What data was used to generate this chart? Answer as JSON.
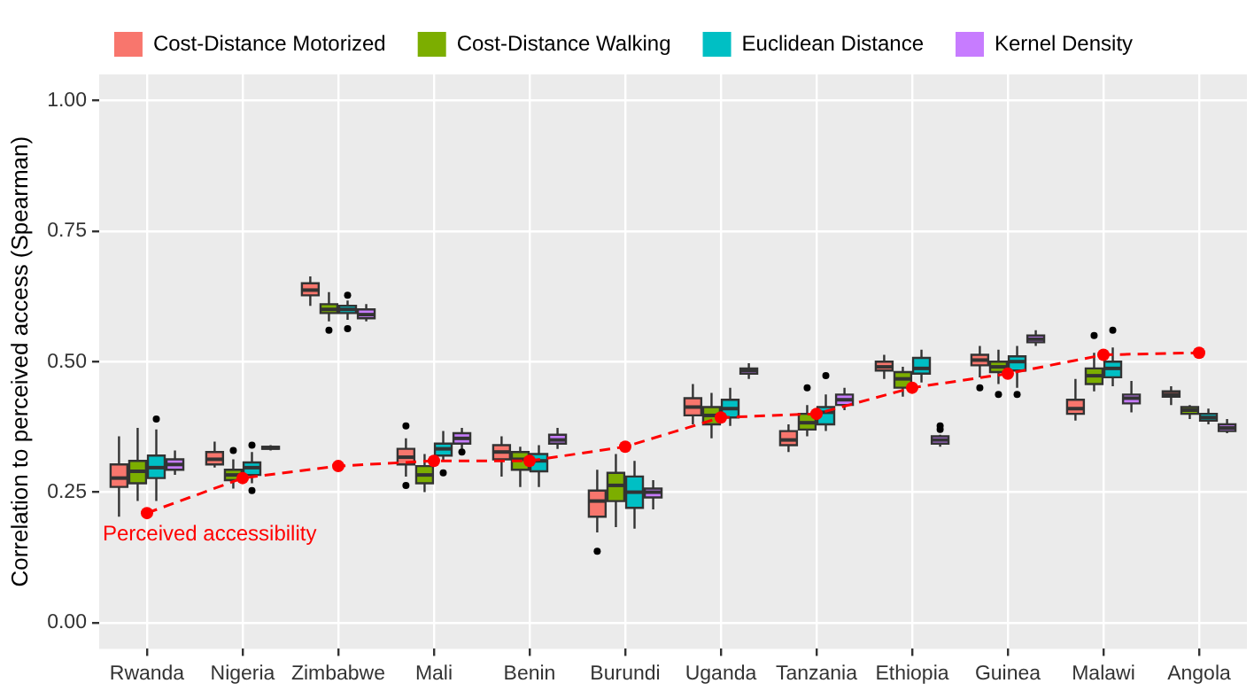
{
  "chart_data": {
    "type": "box",
    "ylabel": "Correlation to perceived access (Spearman)",
    "categories": [
      "Rwanda",
      "Nigeria",
      "Zimbabwe",
      "Mali",
      "Benin",
      "Burundi",
      "Uganda",
      "Tanzania",
      "Ethiopia",
      "Guinea",
      "Malawi",
      "Angola"
    ],
    "ylim": [
      -0.05,
      1.05
    ],
    "yticks": [
      {
        "value": 0,
        "label": "0.00"
      },
      {
        "value": 0.25,
        "label": "0.25"
      },
      {
        "value": 0.5,
        "label": "0.50"
      },
      {
        "value": 0.75,
        "label": "0.75"
      },
      {
        "value": 1,
        "label": "1.00"
      }
    ],
    "grid": true,
    "legend": "top",
    "marker": "circle",
    "line_style": "dashed",
    "series": [
      {
        "name": "Cost-Distance Motorized",
        "color": "#f8766d",
        "boxes": [
          {
            "low": 0.203,
            "q1": 0.26,
            "median": 0.277,
            "q3": 0.303,
            "high": 0.357
          },
          {
            "low": 0.297,
            "q1": 0.303,
            "median": 0.313,
            "q3": 0.327,
            "high": 0.347
          },
          {
            "low": 0.607,
            "q1": 0.627,
            "median": 0.637,
            "q3": 0.65,
            "high": 0.663
          },
          {
            "low": 0.28,
            "q1": 0.303,
            "median": 0.317,
            "q3": 0.333,
            "high": 0.353,
            "outliers": [
              0.377,
              0.263
            ]
          },
          {
            "low": 0.28,
            "q1": 0.313,
            "median": 0.327,
            "q3": 0.34,
            "high": 0.357
          },
          {
            "low": 0.173,
            "q1": 0.203,
            "median": 0.233,
            "q3": 0.253,
            "high": 0.293,
            "outliers": [
              0.137
            ]
          },
          {
            "low": 0.38,
            "q1": 0.397,
            "median": 0.413,
            "q3": 0.43,
            "high": 0.457
          },
          {
            "low": 0.327,
            "q1": 0.34,
            "median": 0.35,
            "q3": 0.367,
            "high": 0.38
          },
          {
            "low": 0.467,
            "q1": 0.483,
            "median": 0.49,
            "q3": 0.5,
            "high": 0.513
          },
          {
            "low": 0.47,
            "q1": 0.493,
            "median": 0.503,
            "q3": 0.513,
            "high": 0.53,
            "outliers": [
              0.45
            ]
          },
          {
            "low": 0.387,
            "q1": 0.4,
            "median": 0.41,
            "q3": 0.427,
            "high": 0.467
          },
          {
            "low": 0.417,
            "q1": 0.433,
            "median": 0.437,
            "q3": 0.443,
            "high": 0.453
          }
        ]
      },
      {
        "name": "Cost-Distance Walking",
        "color": "#7cae00",
        "boxes": [
          {
            "low": 0.233,
            "q1": 0.267,
            "median": 0.29,
            "q3": 0.31,
            "high": 0.373
          },
          {
            "low": 0.257,
            "q1": 0.273,
            "median": 0.283,
            "q3": 0.293,
            "high": 0.313,
            "outliers": [
              0.33
            ]
          },
          {
            "low": 0.577,
            "q1": 0.593,
            "median": 0.6,
            "q3": 0.61,
            "high": 0.633,
            "outliers": [
              0.56
            ]
          },
          {
            "low": 0.25,
            "q1": 0.267,
            "median": 0.283,
            "q3": 0.3,
            "high": 0.323
          },
          {
            "low": 0.26,
            "q1": 0.293,
            "median": 0.313,
            "q3": 0.327,
            "high": 0.337
          },
          {
            "low": 0.183,
            "q1": 0.233,
            "median": 0.263,
            "q3": 0.287,
            "high": 0.323
          },
          {
            "low": 0.353,
            "q1": 0.38,
            "median": 0.397,
            "q3": 0.413,
            "high": 0.44
          },
          {
            "low": 0.357,
            "q1": 0.37,
            "median": 0.383,
            "q3": 0.4,
            "high": 0.417,
            "outliers": [
              0.45
            ]
          },
          {
            "low": 0.433,
            "q1": 0.45,
            "median": 0.467,
            "q3": 0.48,
            "high": 0.49
          },
          {
            "low": 0.457,
            "q1": 0.48,
            "median": 0.49,
            "q3": 0.5,
            "high": 0.523,
            "outliers": [
              0.437
            ]
          },
          {
            "low": 0.443,
            "q1": 0.457,
            "median": 0.473,
            "q3": 0.487,
            "high": 0.517,
            "outliers": [
              0.55
            ]
          },
          {
            "low": 0.39,
            "q1": 0.4,
            "median": 0.407,
            "q3": 0.413,
            "high": 0.417
          }
        ]
      },
      {
        "name": "Euclidean Distance",
        "color": "#00bfc4",
        "boxes": [
          {
            "low": 0.233,
            "q1": 0.277,
            "median": 0.297,
            "q3": 0.32,
            "high": 0.37,
            "outliers": [
              0.39
            ]
          },
          {
            "low": 0.267,
            "q1": 0.283,
            "median": 0.297,
            "q3": 0.307,
            "high": 0.327,
            "outliers": [
              0.34,
              0.253
            ]
          },
          {
            "low": 0.58,
            "q1": 0.593,
            "median": 0.6,
            "q3": 0.607,
            "high": 0.617,
            "outliers": [
              0.627,
              0.563
            ]
          },
          {
            "low": 0.31,
            "q1": 0.32,
            "median": 0.333,
            "q3": 0.343,
            "high": 0.367,
            "outliers": [
              0.287
            ]
          },
          {
            "low": 0.26,
            "q1": 0.29,
            "median": 0.31,
            "q3": 0.323,
            "high": 0.34
          },
          {
            "low": 0.18,
            "q1": 0.22,
            "median": 0.25,
            "q3": 0.28,
            "high": 0.31
          },
          {
            "low": 0.377,
            "q1": 0.393,
            "median": 0.41,
            "q3": 0.427,
            "high": 0.45
          },
          {
            "low": 0.367,
            "q1": 0.38,
            "median": 0.403,
            "q3": 0.413,
            "high": 0.437,
            "outliers": [
              0.473
            ]
          },
          {
            "low": 0.46,
            "q1": 0.477,
            "median": 0.487,
            "q3": 0.507,
            "high": 0.523
          },
          {
            "low": 0.45,
            "q1": 0.483,
            "median": 0.5,
            "q3": 0.51,
            "high": 0.53,
            "outliers": [
              0.437
            ]
          },
          {
            "low": 0.453,
            "q1": 0.47,
            "median": 0.487,
            "q3": 0.5,
            "high": 0.527,
            "outliers": [
              0.56
            ]
          },
          {
            "low": 0.38,
            "q1": 0.387,
            "median": 0.393,
            "q3": 0.4,
            "high": 0.41
          }
        ]
      },
      {
        "name": "Kernel Density",
        "color": "#c77cff",
        "boxes": [
          {
            "low": 0.283,
            "q1": 0.293,
            "median": 0.303,
            "q3": 0.313,
            "high": 0.33
          },
          {
            "low": 0.33,
            "q1": 0.333,
            "median": 0.335,
            "q3": 0.337,
            "high": 0.34
          },
          {
            "low": 0.577,
            "q1": 0.583,
            "median": 0.59,
            "q3": 0.6,
            "high": 0.61
          },
          {
            "low": 0.333,
            "q1": 0.343,
            "median": 0.353,
            "q3": 0.363,
            "high": 0.373,
            "outliers": [
              0.327
            ]
          },
          {
            "low": 0.333,
            "q1": 0.343,
            "median": 0.35,
            "q3": 0.36,
            "high": 0.373
          },
          {
            "low": 0.217,
            "q1": 0.24,
            "median": 0.25,
            "q3": 0.257,
            "high": 0.273
          },
          {
            "low": 0.467,
            "q1": 0.477,
            "median": 0.483,
            "q3": 0.487,
            "high": 0.497
          },
          {
            "low": 0.407,
            "q1": 0.417,
            "median": 0.427,
            "q3": 0.437,
            "high": 0.45
          },
          {
            "low": 0.337,
            "q1": 0.343,
            "median": 0.35,
            "q3": 0.357,
            "high": 0.36,
            "outliers": [
              0.377,
              0.37
            ]
          },
          {
            "low": 0.53,
            "q1": 0.537,
            "median": 0.543,
            "q3": 0.55,
            "high": 0.56
          },
          {
            "low": 0.403,
            "q1": 0.42,
            "median": 0.43,
            "q3": 0.437,
            "high": 0.463
          },
          {
            "low": 0.363,
            "q1": 0.367,
            "median": 0.373,
            "q3": 0.38,
            "high": 0.39
          }
        ]
      },
      {
        "type": "line",
        "name": "Perceived accessibility",
        "color": "#ff0000",
        "values": [
          0.21,
          0.277,
          0.3,
          0.31,
          0.31,
          0.337,
          0.393,
          0.4,
          0.45,
          0.477,
          0.513,
          0.517
        ]
      }
    ]
  }
}
